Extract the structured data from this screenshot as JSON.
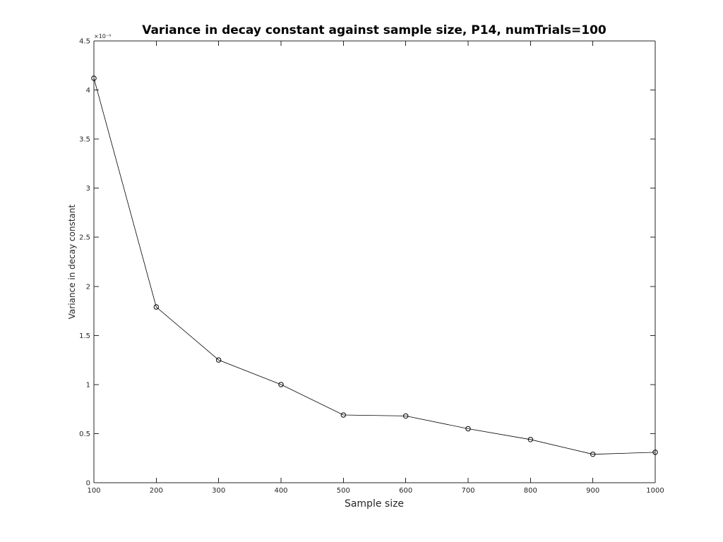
{
  "chart_data": {
    "type": "line",
    "title": "Variance in decay constant against sample size, P14, numTrials=100",
    "xlabel": "Sample size",
    "ylabel": "Variance in decay constant",
    "y_exponent_label": "×10⁻⁹",
    "xlim": [
      100,
      1000
    ],
    "ylim": [
      0,
      4.5
    ],
    "x_ticks": [
      100,
      200,
      300,
      400,
      500,
      600,
      700,
      800,
      900,
      1000
    ],
    "x_tick_labels": [
      "100",
      "200",
      "300",
      "400",
      "500",
      "600",
      "700",
      "800",
      "900",
      "1000"
    ],
    "y_ticks": [
      0,
      0.5,
      1,
      1.5,
      2,
      2.5,
      3,
      3.5,
      4,
      4.5
    ],
    "y_tick_labels": [
      "0",
      "0.5",
      "1",
      "1.5",
      "2",
      "2.5",
      "3",
      "3.5",
      "4",
      "4.5"
    ],
    "grid": false,
    "box": true,
    "series": [
      {
        "x": [
          100,
          200,
          300,
          400,
          500,
          600,
          700,
          800,
          900,
          1000
        ],
        "y": [
          4.12,
          1.79,
          1.25,
          1.0,
          0.69,
          0.68,
          0.55,
          0.44,
          0.29,
          0.31
        ],
        "color": "#000000",
        "marker": "circle-open"
      }
    ]
  }
}
